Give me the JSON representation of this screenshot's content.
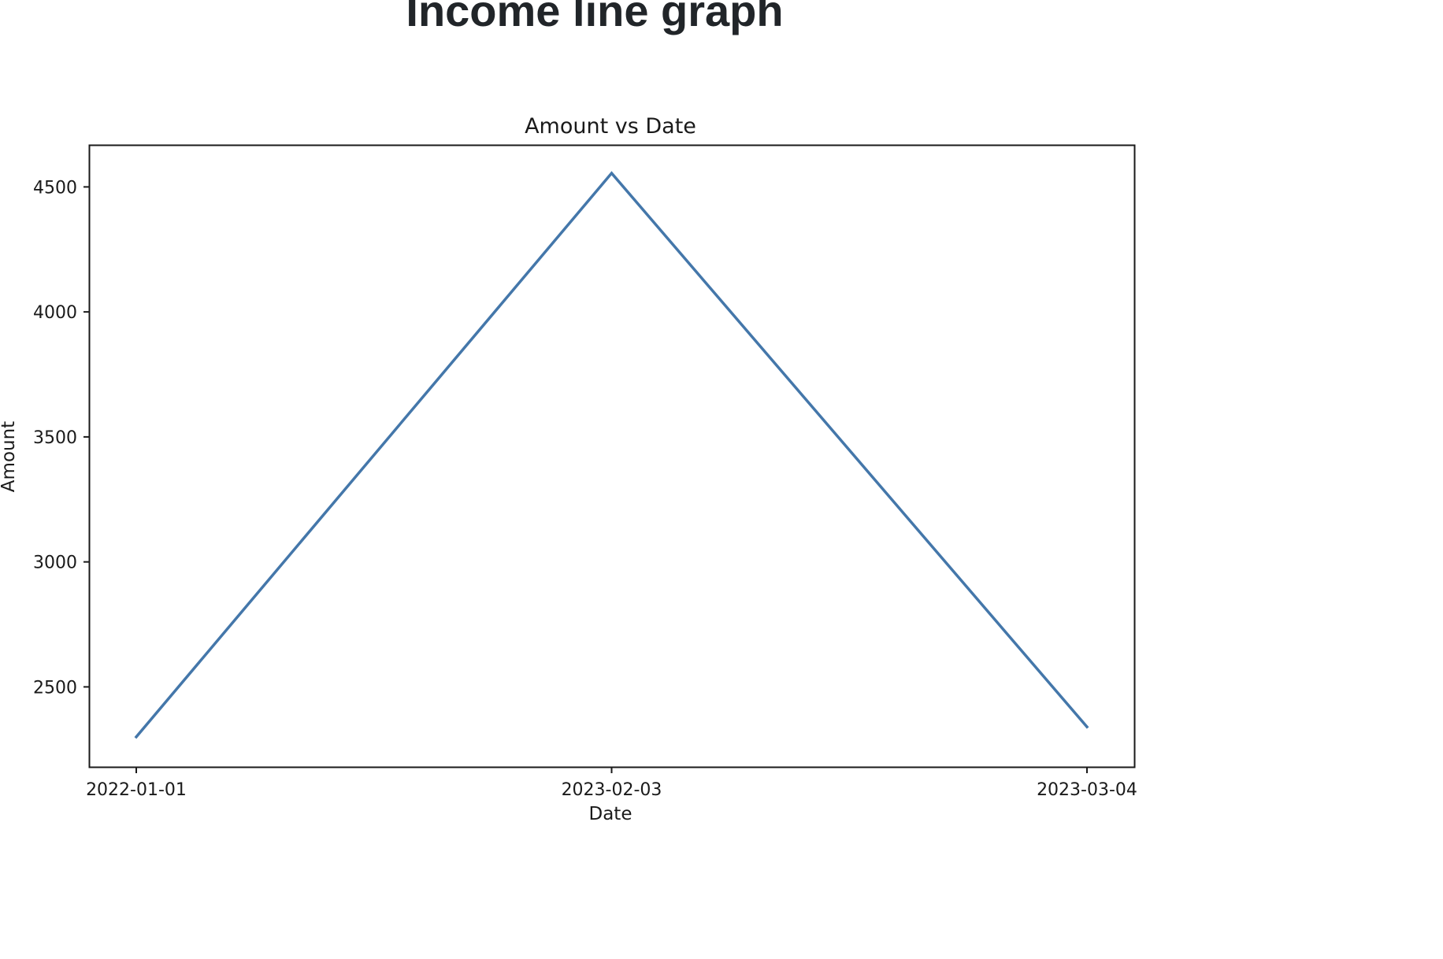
{
  "page": {
    "heading": "Income line graph"
  },
  "chart_data": {
    "type": "line",
    "title": "Amount vs Date",
    "xlabel": "Date",
    "ylabel": "Amount",
    "x": [
      "2022-01-01",
      "2023-02-03",
      "2023-03-04"
    ],
    "series": [
      {
        "values": [
          2300,
          4555,
          2340
        ],
        "color": "#4477aa"
      }
    ],
    "yticks": [
      2500,
      3000,
      3500,
      4000,
      4500
    ],
    "ylim": [
      2180,
      4665
    ],
    "grid": false,
    "legend": false
  }
}
